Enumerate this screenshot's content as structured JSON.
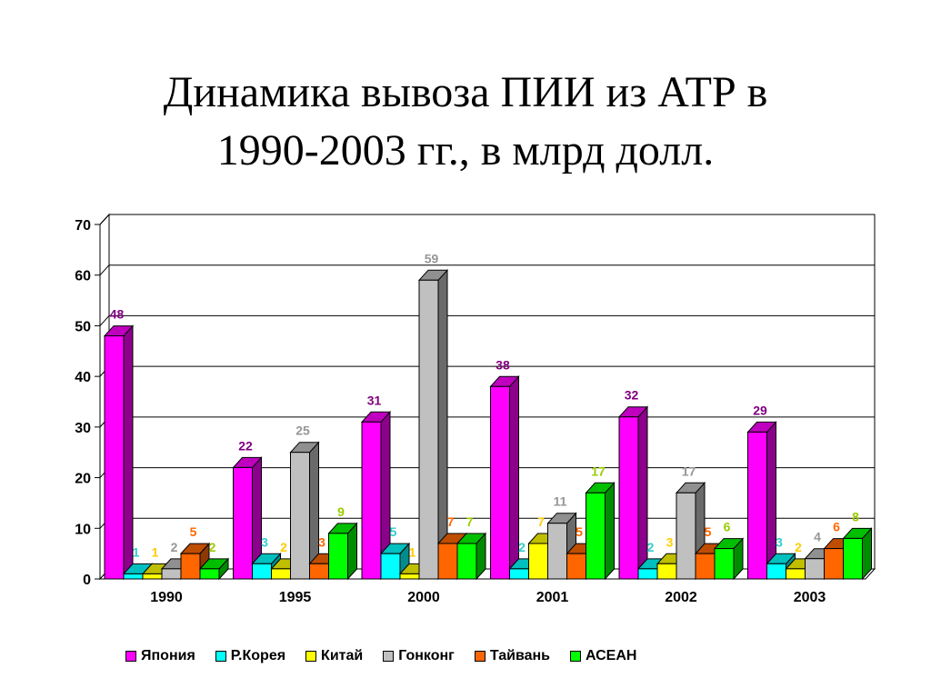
{
  "title_line1": "Динамика вывоза ПИИ из АТР в",
  "title_line2": "1990-2003 гг., в млрд долл.",
  "chart_data": {
    "type": "bar",
    "categories": [
      "1990",
      "1995",
      "2000",
      "2001",
      "2002",
      "2003"
    ],
    "ylim": [
      0,
      70
    ],
    "yticks": [
      "0",
      "10",
      "20",
      "30",
      "40",
      "50",
      "60",
      "70"
    ],
    "grid": true,
    "legend_position": "bottom",
    "series": [
      {
        "name": "Япония",
        "color": "#ff00ff",
        "label_color": "#800080",
        "values": [
          48,
          22,
          31,
          38,
          32,
          29
        ]
      },
      {
        "name": "Р.Корея",
        "color": "#00ffff",
        "label_color": "#33cccc",
        "values": [
          1,
          3,
          5,
          2,
          2,
          3
        ]
      },
      {
        "name": "Китай",
        "color": "#ffff00",
        "label_color": "#ffcc00",
        "values": [
          1,
          2,
          1,
          7,
          3,
          2
        ]
      },
      {
        "name": "Гонконг",
        "color": "#c0c0c0",
        "label_color": "#969696",
        "values": [
          2,
          25,
          59,
          11,
          17,
          4
        ]
      },
      {
        "name": "Тайвань",
        "color": "#ff6600",
        "label_color": "#ff6600",
        "values": [
          5,
          3,
          7,
          5,
          5,
          6
        ]
      },
      {
        "name": "АСЕАН",
        "color": "#00ff00",
        "label_color": "#99cc00",
        "values": [
          2,
          9,
          7,
          17,
          6,
          8
        ]
      }
    ]
  }
}
